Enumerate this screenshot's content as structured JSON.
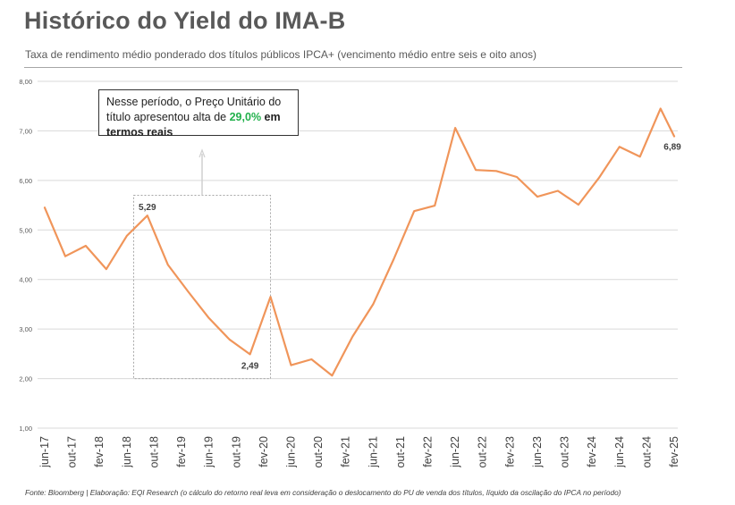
{
  "title": "Histórico do Yield do IMA-B",
  "subtitle": "Taxa de rendimento médio ponderado dos títulos públicos IPCA+ (vencimento médio entre seis e oito anos)",
  "source": "Fonte: Bloomberg | Elaboração: EQI Research (o cálculo do retorno real leva em consideração o deslocamento do PU de venda dos títulos, líquido da oscilação do IPCA no período)",
  "callout": {
    "text_before": "Nesse período, o Preço Unitário do título apresentou alta de ",
    "highlight": "29,0%",
    "text_middle": " em ",
    "bold_end": "termos reais"
  },
  "colors": {
    "line": "#f0955a",
    "highlight": "#22b14c",
    "grid": "#d9d9d9",
    "box": "#a6a6a6"
  },
  "chart_data": {
    "type": "line",
    "title": "Histórico do Yield do IMA-B",
    "ylim": [
      1.0,
      8.0
    ],
    "y_ticks": [
      "1,00",
      "2,00",
      "3,00",
      "4,00",
      "5,00",
      "6,00",
      "7,00",
      "8,00"
    ],
    "y_tick_values": [
      1,
      2,
      3,
      4,
      5,
      6,
      7,
      8
    ],
    "x_labels": [
      "jun-17",
      "out-17",
      "fev-18",
      "jun-18",
      "out-18",
      "fev-19",
      "jun-19",
      "out-19",
      "fev-20",
      "jun-20",
      "out-20",
      "fev-21",
      "jun-21",
      "out-21",
      "fev-22",
      "jun-22",
      "out-22",
      "fev-23",
      "jun-23",
      "out-23",
      "fev-24",
      "jun-24",
      "out-24",
      "fev-25"
    ],
    "x_label_positions": [
      0,
      4,
      8,
      12,
      16,
      20,
      24,
      28,
      32,
      36,
      40,
      44,
      48,
      52,
      56,
      60,
      64,
      68,
      72,
      76,
      80,
      84,
      88,
      92
    ],
    "x_max": 92,
    "grid": true,
    "series": [
      {
        "points": [
          [
            0,
            5.45
          ],
          [
            3,
            4.47
          ],
          [
            6,
            4.68
          ],
          [
            9,
            4.21
          ],
          [
            12,
            4.88
          ],
          [
            15,
            5.29
          ],
          [
            18,
            4.3
          ],
          [
            21,
            3.75
          ],
          [
            24,
            3.22
          ],
          [
            27,
            2.79
          ],
          [
            30,
            2.49
          ],
          [
            33,
            3.65
          ],
          [
            36,
            2.27
          ],
          [
            39,
            2.39
          ],
          [
            42,
            2.06
          ],
          [
            45,
            2.85
          ],
          [
            48,
            3.5
          ],
          [
            51,
            4.41
          ],
          [
            54,
            5.38
          ],
          [
            57,
            5.49
          ],
          [
            60,
            7.06
          ],
          [
            63,
            6.21
          ],
          [
            66,
            6.19
          ],
          [
            69,
            6.07
          ],
          [
            72,
            5.67
          ],
          [
            75,
            5.79
          ],
          [
            78,
            5.51
          ],
          [
            81,
            6.05
          ],
          [
            84,
            6.68
          ],
          [
            87,
            6.48
          ],
          [
            90,
            7.45
          ],
          [
            92,
            6.89
          ]
        ]
      }
    ],
    "data_labels": [
      {
        "x": 15,
        "y": 5.29,
        "text": "5,29"
      },
      {
        "x": 30,
        "y": 2.49,
        "text": "2,49"
      },
      {
        "x": 92,
        "y": 6.89,
        "text": "6,89"
      }
    ],
    "highlight_box": {
      "x_start": 13,
      "x_end": 33,
      "y_low": 2.0,
      "y_high": 5.7
    }
  }
}
